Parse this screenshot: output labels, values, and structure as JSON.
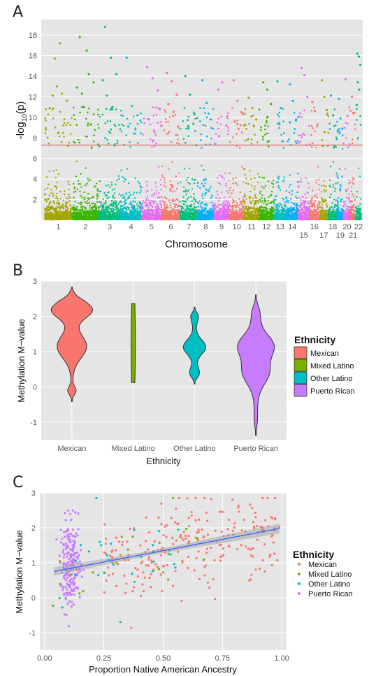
{
  "panels": {
    "A": "A",
    "B": "B",
    "C": "C"
  },
  "chart_data": [
    {
      "type": "scatter",
      "subtype": "manhattan",
      "ylabel": "-log10(p)",
      "xlabel": "Chromosome",
      "ylim": [
        0,
        19.5
      ],
      "yticks": [
        2,
        4,
        6,
        8,
        10,
        12,
        14,
        16,
        18
      ],
      "significance_line": 7.3,
      "chromosomes": [
        {
          "label": "1",
          "color": "#A3A500",
          "peaks": [
            12.1,
            17.2,
            11.6,
            15.7,
            12.3,
            10.9,
            13.0
          ]
        },
        {
          "label": "2",
          "color": "#39B600",
          "peaks": [
            17.8,
            16.5,
            13.4,
            12.3,
            14.2,
            12.9,
            11.0
          ]
        },
        {
          "label": "3",
          "color": "#00BF7D",
          "peaks": [
            18.8,
            15.8,
            14.2,
            12.1,
            11.0,
            13.6
          ]
        },
        {
          "label": "4",
          "color": "#00BFC4",
          "peaks": [
            15.8,
            11.1,
            10.2,
            9.1
          ]
        },
        {
          "label": "5",
          "color": "#E76BF3",
          "peaks": [
            14.9,
            13.8,
            12.6,
            9.8,
            8.7
          ]
        },
        {
          "label": "6",
          "color": "#F8766D",
          "peaks": [
            14.3,
            13.5,
            12.2,
            11.3,
            10.1
          ]
        },
        {
          "label": "7",
          "color": "#00BF7D",
          "peaks": [
            14.0,
            12.2,
            10.3
          ]
        },
        {
          "label": "8",
          "color": "#00B0F6",
          "peaks": [
            13.6,
            11.4,
            9.8
          ]
        },
        {
          "label": "9",
          "color": "#E76BF3",
          "peaks": [
            12.7,
            13.4,
            9.2
          ]
        },
        {
          "label": "10",
          "color": "#F8766D",
          "peaks": [
            13.6,
            11.6,
            10.5,
            9.6
          ]
        },
        {
          "label": "11",
          "color": "#A3A500",
          "peaks": [
            11.9,
            10.9,
            9.8
          ]
        },
        {
          "label": "12",
          "color": "#39B600",
          "peaks": [
            13.4,
            12.7,
            11.3
          ]
        },
        {
          "label": "13",
          "color": "#00BFC4",
          "peaks": [
            13.5,
            10.9
          ]
        },
        {
          "label": "14",
          "color": "#00B0F6",
          "peaks": [
            13.2,
            11.6,
            9.7
          ]
        },
        {
          "label": "15",
          "color": "#E76BF3",
          "peaks": [
            14.8,
            14.1,
            12.0
          ]
        },
        {
          "label": "16",
          "color": "#F8766D",
          "peaks": [
            11.5,
            10.6,
            9.3
          ]
        },
        {
          "label": "17",
          "color": "#A3A500",
          "peaks": [
            13.6,
            12.0,
            10.7
          ]
        },
        {
          "label": "18",
          "color": "#00BF7D",
          "peaks": [
            12.1,
            10.2
          ]
        },
        {
          "label": "19",
          "color": "#00B0F6",
          "peaks": [
            11.8,
            9.9,
            8.9
          ]
        },
        {
          "label": "20",
          "color": "#E76BF3",
          "peaks": [
            13.7,
            10.1
          ]
        },
        {
          "label": "21",
          "color": "#F8766D",
          "peaks": [
            12.0,
            10.4
          ]
        },
        {
          "label": "22",
          "color": "#00BF7D",
          "peaks": [
            16.2,
            15.9,
            15.1,
            13.4,
            12.7,
            11.2
          ]
        }
      ]
    },
    {
      "type": "violin",
      "ylabel": "Methylation M−value",
      "xlabel": "Ethnicity",
      "ylim": [
        -1.5,
        3.0
      ],
      "yticks": [
        -1,
        0,
        1,
        2,
        3
      ],
      "categories": [
        "Mexican",
        "Mixed Latino",
        "Other Latino",
        "Puerto Rican"
      ],
      "colors": [
        "#F8766D",
        "#7CAE00",
        "#00BFC4",
        "#C77CFF"
      ],
      "series": [
        {
          "name": "Mexican",
          "min": -0.42,
          "max": 2.83
        },
        {
          "name": "Mixed Latino",
          "min": 0.12,
          "max": 2.36
        },
        {
          "name": "Other Latino",
          "min": 0.08,
          "max": 2.26
        },
        {
          "name": "Puerto Rican",
          "min": -1.38,
          "max": 2.61
        }
      ],
      "legend": {
        "title": "Ethnicity",
        "position": "right"
      }
    },
    {
      "type": "scatter",
      "ylabel": "Methylation M−value",
      "xlabel": "Proportion Native American Ancestry",
      "xlim": [
        -0.02,
        1.02
      ],
      "ylim": [
        -1.5,
        3.0
      ],
      "xticks": [
        0.0,
        0.25,
        0.5,
        0.75,
        1.0
      ],
      "xtick_labels": [
        "0.00",
        "0.25",
        "0.50",
        "0.75",
        "1.00"
      ],
      "yticks": [
        -1,
        0,
        1,
        2,
        3
      ],
      "trend_line": {
        "x": [
          0.04,
          0.99
        ],
        "y": [
          0.75,
          1.98
        ]
      },
      "series": [
        {
          "name": "Mexican",
          "color": "#F8766D",
          "x_range": [
            0.25,
            0.99
          ],
          "n": 230
        },
        {
          "name": "Mixed Latino",
          "color": "#7CAE00",
          "x_range": [
            0.03,
            0.7
          ],
          "n": 20
        },
        {
          "name": "Other Latino",
          "color": "#00BFC4",
          "x_range": [
            0.04,
            0.62
          ],
          "n": 30
        },
        {
          "name": "Puerto Rican",
          "color": "#C77CFF",
          "x_range": [
            0.05,
            0.18
          ],
          "n": 210
        }
      ],
      "legend": {
        "title": "Ethnicity",
        "position": "right"
      }
    }
  ]
}
